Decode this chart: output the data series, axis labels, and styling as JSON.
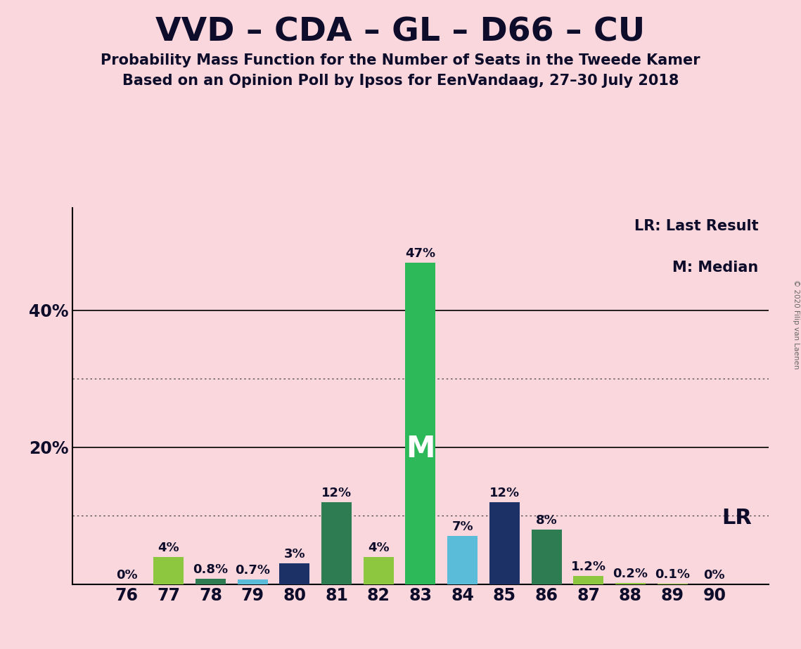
{
  "title": "VVD – CDA – GL – D66 – CU",
  "subtitle1": "Probability Mass Function for the Number of Seats in the Tweede Kamer",
  "subtitle2": "Based on an Opinion Poll by Ipsos for EenVandaag, 27–30 July 2018",
  "copyright": "© 2020 Filip van Laenen",
  "seats": [
    76,
    77,
    78,
    79,
    80,
    81,
    82,
    83,
    84,
    85,
    86,
    87,
    88,
    89,
    90
  ],
  "probs": [
    0.0,
    4.0,
    0.8,
    0.7,
    3.0,
    12.0,
    4.0,
    47.0,
    7.0,
    12.0,
    8.0,
    1.2,
    0.2,
    0.1,
    0.0
  ],
  "colors": [
    "#8DC63F",
    "#8DC63F",
    "#2E7D52",
    "#5BBCDA",
    "#1C3266",
    "#2E7D52",
    "#8DC63F",
    "#2DB85A",
    "#5BBCDA",
    "#1C3266",
    "#2E7D52",
    "#8DC63F",
    "#8DC63F",
    "#8DC63F",
    "#8DC63F"
  ],
  "bar_labels": [
    "0%",
    "4%",
    "0.8%",
    "0.7%",
    "3%",
    "12%",
    "4%",
    "47%",
    "7%",
    "12%",
    "8%",
    "1.2%",
    "0.2%",
    "0.1%",
    "0%"
  ],
  "median_seat": 83,
  "median_label": "M",
  "lr_seat": 90,
  "lr_label": "LR",
  "legend_lr": "LR: Last Result",
  "legend_m": "M: Median",
  "background_color": "#FAD7DC",
  "ylim_max": 55,
  "solid_gridlines": [
    20,
    40
  ],
  "dotted_gridlines": [
    10,
    30
  ],
  "title_fontsize": 34,
  "subtitle_fontsize": 15,
  "tick_fontsize": 17,
  "bar_label_fontsize": 13,
  "ytick_labels": [
    "",
    "20%",
    "",
    "40%",
    ""
  ],
  "ytick_vals": [
    0,
    20,
    30,
    40,
    50
  ]
}
